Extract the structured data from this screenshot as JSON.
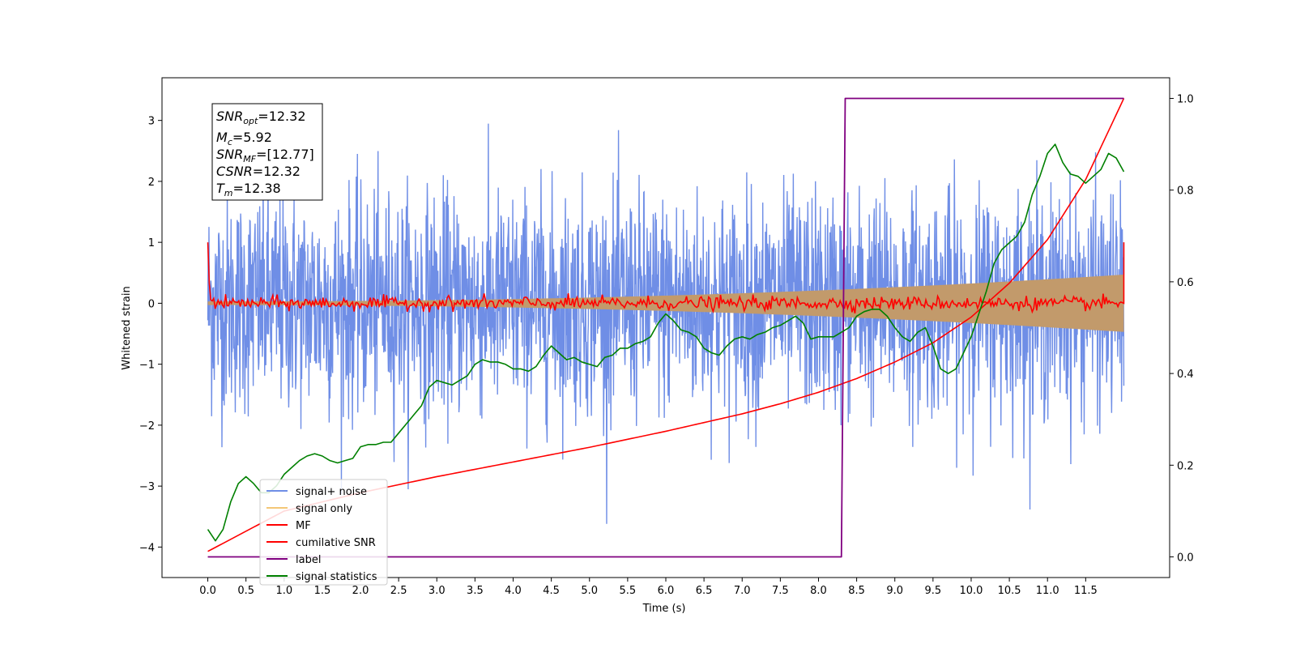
{
  "chart_data": {
    "type": "line",
    "xlabel": "Time (s)",
    "ylabel": "Whitened strain",
    "xlim": [
      -0.6,
      12.6
    ],
    "ylim": [
      -4.5,
      3.7
    ],
    "y2lim": [
      -0.045,
      1.045
    ],
    "xticks": [
      0.0,
      0.5,
      1.0,
      1.5,
      2.0,
      2.5,
      3.0,
      3.5,
      4.0,
      4.5,
      5.0,
      5.5,
      6.0,
      6.5,
      7.0,
      7.5,
      8.0,
      8.5,
      9.0,
      9.5,
      10.0,
      10.5,
      11.0,
      11.5
    ],
    "xtick_labels": [
      "0.0",
      "0.5",
      "1.0",
      "1.5",
      "2.0",
      "2.5",
      "3.0",
      "3.5",
      "4.0",
      "4.5",
      "5.0",
      "5.5",
      "6.0",
      "6.5",
      "7.0",
      "7.5",
      "8.0",
      "8.5",
      "9.0",
      "9.5",
      "10.0",
      "10.5",
      "11.0",
      "11.5"
    ],
    "yticks": [
      -4,
      -3,
      -2,
      -1,
      0,
      1,
      2,
      3
    ],
    "ytick_labels": [
      "−4",
      "−3",
      "−2",
      "−1",
      "0",
      "1",
      "2",
      "3"
    ],
    "y2ticks": [
      0.0,
      0.2,
      0.4,
      0.6,
      0.8,
      1.0
    ],
    "y2tick_labels": [
      "0.0",
      "0.2",
      "0.4",
      "0.6",
      "0.8",
      "1.0"
    ],
    "grid": false,
    "legend_position": "lower-left",
    "colors": {
      "signal_noise": "#6f8ee6",
      "signal_only": "#f4c777",
      "band": "#c29a6b",
      "mf": "#ff0000",
      "cumulative_snr": "#ff0000",
      "label": "#800080",
      "signal_statistics": "#008000"
    },
    "annotation": {
      "snr_opt": {
        "main": "SNR",
        "sub": "opt",
        "value": "=12.32"
      },
      "mc": {
        "main": "M",
        "sub": "c",
        "value": "=5.92"
      },
      "snr_mf": {
        "main": "SNR",
        "sub": "MF",
        "value": "=[12.77]"
      },
      "csnr": {
        "main": "CSNR",
        "sub": "",
        "value": "=12.32"
      },
      "tm": {
        "main": "T",
        "sub": "m",
        "value": "=12.38"
      }
    },
    "series": [
      {
        "name": "signal+ noise",
        "axis": "left",
        "t_range": [
          0.0,
          12.0
        ],
        "mean": 0.0,
        "std": 0.9,
        "min": -4.15,
        "max": 3.15
      },
      {
        "name": "signal only",
        "axis": "left",
        "t_range": [
          0.0,
          12.0
        ],
        "envelope_start": 0.03,
        "envelope_end": 0.47
      },
      {
        "name": "MF",
        "axis": "left",
        "t_range": [
          0.0,
          12.0
        ],
        "start": 1.0,
        "baseline": 0.0,
        "end": 1.0
      },
      {
        "name": "cumilative SNR",
        "axis": "right",
        "x": [
          0.0,
          1.0,
          2.0,
          3.0,
          4.0,
          5.0,
          6.0,
          7.0,
          7.5,
          8.0,
          8.5,
          9.0,
          9.5,
          10.0,
          10.5,
          11.0,
          11.5,
          12.0
        ],
        "y": [
          0.012,
          0.1,
          0.14,
          0.175,
          0.207,
          0.239,
          0.274,
          0.312,
          0.334,
          0.359,
          0.389,
          0.425,
          0.467,
          0.523,
          0.597,
          0.692,
          0.823,
          1.0
        ]
      },
      {
        "name": "label",
        "axis": "right",
        "x": [
          0.0,
          8.3,
          8.35,
          12.0
        ],
        "y": [
          0.0,
          0.0,
          1.0,
          1.0
        ]
      },
      {
        "name": "signal statistics",
        "axis": "right",
        "x": [
          0.0,
          0.1,
          0.2,
          0.3,
          0.4,
          0.5,
          0.6,
          0.7,
          0.8,
          0.9,
          1.0,
          1.1,
          1.2,
          1.3,
          1.4,
          1.5,
          1.6,
          1.7,
          1.8,
          1.9,
          2.0,
          2.1,
          2.2,
          2.3,
          2.4,
          2.5,
          2.6,
          2.7,
          2.8,
          2.9,
          3.0,
          3.1,
          3.2,
          3.3,
          3.4,
          3.5,
          3.6,
          3.7,
          3.8,
          3.9,
          4.0,
          4.1,
          4.2,
          4.3,
          4.4,
          4.5,
          4.6,
          4.7,
          4.8,
          4.9,
          5.0,
          5.1,
          5.2,
          5.3,
          5.4,
          5.5,
          5.6,
          5.7,
          5.8,
          5.9,
          6.0,
          6.1,
          6.2,
          6.3,
          6.4,
          6.5,
          6.6,
          6.7,
          6.8,
          6.9,
          7.0,
          7.1,
          7.2,
          7.3,
          7.4,
          7.5,
          7.6,
          7.7,
          7.8,
          7.9,
          8.0,
          8.1,
          8.2,
          8.3,
          8.4,
          8.5,
          8.6,
          8.7,
          8.8,
          8.9,
          9.0,
          9.1,
          9.2,
          9.3,
          9.4,
          9.5,
          9.6,
          9.7,
          9.8,
          9.9,
          10.0,
          10.1,
          10.2,
          10.3,
          10.4,
          10.5,
          10.6,
          10.7,
          10.8,
          10.9,
          11.0,
          11.1,
          11.2,
          11.3,
          11.4,
          11.5,
          11.6,
          11.7,
          11.8,
          11.9,
          12.0
        ],
        "y": [
          0.06,
          0.035,
          0.06,
          0.12,
          0.16,
          0.175,
          0.16,
          0.14,
          0.14,
          0.155,
          0.18,
          0.195,
          0.21,
          0.22,
          0.225,
          0.22,
          0.21,
          0.205,
          0.21,
          0.215,
          0.24,
          0.245,
          0.245,
          0.25,
          0.25,
          0.27,
          0.29,
          0.31,
          0.33,
          0.37,
          0.385,
          0.38,
          0.375,
          0.385,
          0.395,
          0.42,
          0.43,
          0.425,
          0.425,
          0.42,
          0.41,
          0.41,
          0.405,
          0.415,
          0.44,
          0.46,
          0.445,
          0.43,
          0.435,
          0.425,
          0.42,
          0.415,
          0.435,
          0.44,
          0.455,
          0.455,
          0.465,
          0.47,
          0.48,
          0.51,
          0.53,
          0.515,
          0.495,
          0.49,
          0.48,
          0.455,
          0.445,
          0.44,
          0.46,
          0.475,
          0.48,
          0.475,
          0.485,
          0.49,
          0.5,
          0.505,
          0.515,
          0.525,
          0.51,
          0.475,
          0.48,
          0.48,
          0.48,
          0.49,
          0.5,
          0.525,
          0.535,
          0.54,
          0.54,
          0.525,
          0.5,
          0.48,
          0.47,
          0.49,
          0.5,
          0.46,
          0.41,
          0.4,
          0.41,
          0.445,
          0.48,
          0.53,
          0.58,
          0.64,
          0.67,
          0.685,
          0.7,
          0.73,
          0.79,
          0.83,
          0.88,
          0.9,
          0.86,
          0.835,
          0.83,
          0.815,
          0.83,
          0.845,
          0.88,
          0.87,
          0.84
        ]
      }
    ]
  }
}
